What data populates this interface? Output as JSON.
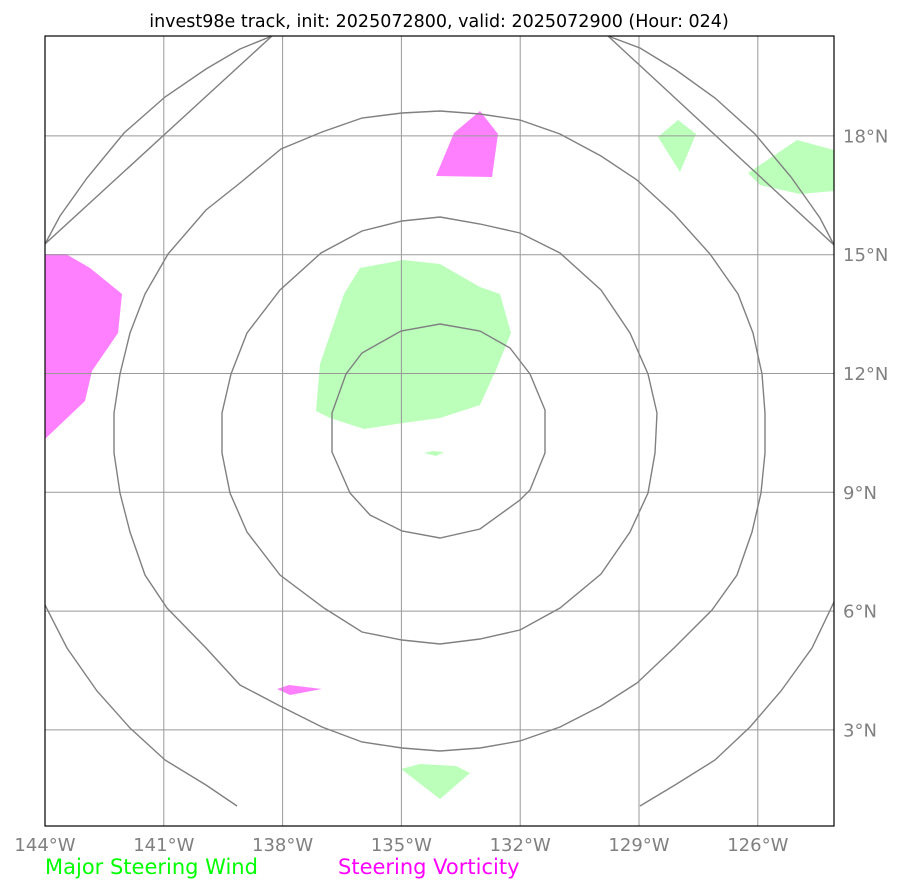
{
  "title": "invest98e track, init: 2025072800, valid: 2025072900 (Hour: 024)",
  "map": {
    "lon_range": [
      -144,
      -125
    ],
    "lat_range": [
      0.7,
      20.3
    ],
    "lon_ticks": [
      {
        "value": -144,
        "label": "144°W"
      },
      {
        "value": -141,
        "label": "141°W"
      },
      {
        "value": -138,
        "label": "138°W"
      },
      {
        "value": -135,
        "label": "135°W"
      },
      {
        "value": -132,
        "label": "132°W"
      },
      {
        "value": -129,
        "label": "129°W"
      },
      {
        "value": -126,
        "label": "126°W"
      }
    ],
    "lat_ticks": [
      {
        "value": 18,
        "label": "18°N"
      },
      {
        "value": 15,
        "label": "15°N"
      },
      {
        "value": 12,
        "label": "12°N"
      },
      {
        "value": 9,
        "label": "9°N"
      },
      {
        "value": 6,
        "label": "6°N"
      },
      {
        "value": 3,
        "label": "3°N"
      }
    ],
    "gridlines": true,
    "gridline_color": "#999999",
    "ring_center": {
      "lon": -134.0,
      "lat": 10.0
    },
    "ring_color": "#808080",
    "steering_wind_color": "#bbffbb",
    "steering_vorticity_color": "#ff80ff"
  },
  "legend": [
    {
      "label": "Major Steering Wind",
      "color": "#00ff00"
    },
    {
      "label": "Steering Vorticity",
      "color": "#ff00ff"
    }
  ]
}
